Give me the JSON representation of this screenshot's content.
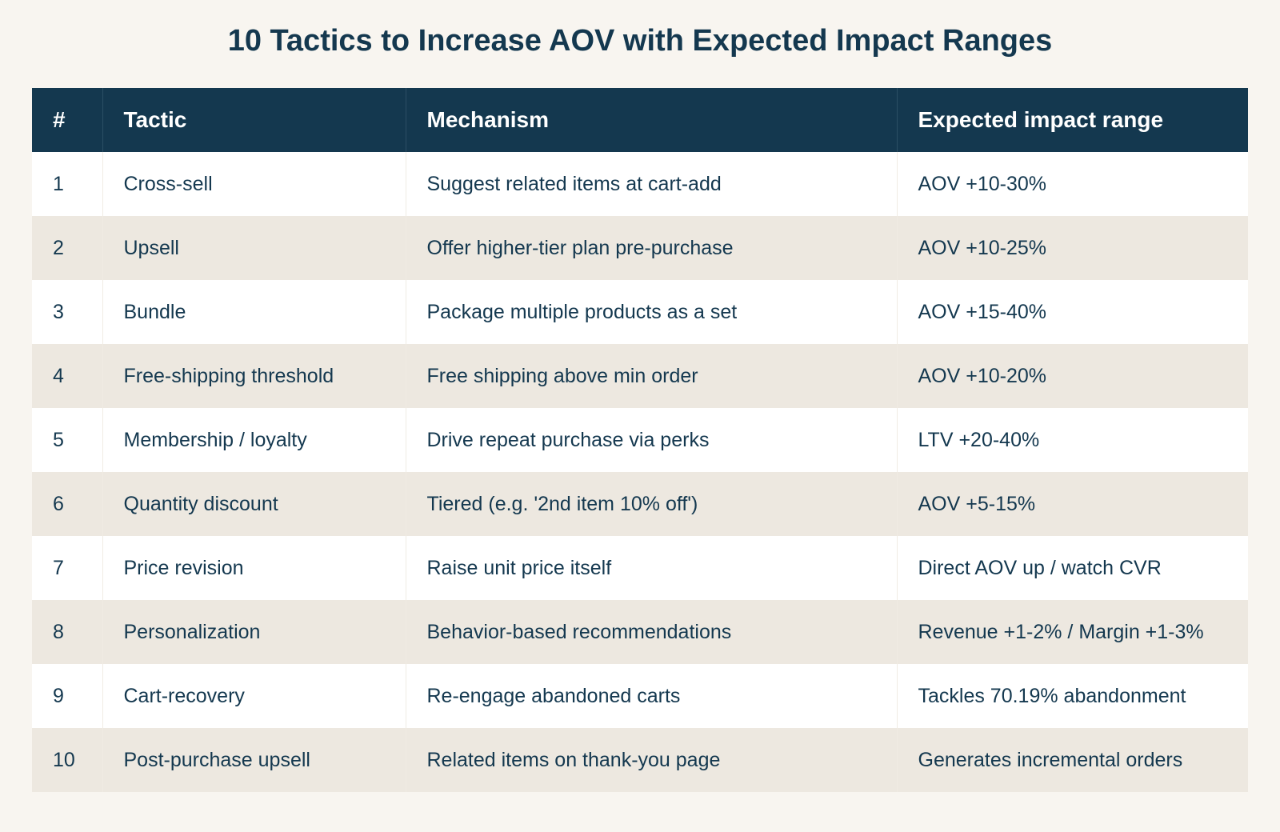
{
  "title": "10 Tactics to Increase AOV with Expected Impact Ranges",
  "table": {
    "headers": [
      "#",
      "Tactic",
      "Mechanism",
      "Expected impact range"
    ],
    "rows": [
      [
        "1",
        "Cross-sell",
        "Suggest related items at cart-add",
        "AOV +10-30%"
      ],
      [
        "2",
        "Upsell",
        "Offer higher-tier plan pre-purchase",
        "AOV +10-25%"
      ],
      [
        "3",
        "Bundle",
        "Package multiple products as a set",
        "AOV +15-40%"
      ],
      [
        "4",
        "Free-shipping threshold",
        "Free shipping above min order",
        "AOV +10-20%"
      ],
      [
        "5",
        "Membership / loyalty",
        "Drive repeat purchase via perks",
        "LTV +20-40%"
      ],
      [
        "6",
        "Quantity discount",
        "Tiered (e.g. '2nd item 10% off')",
        "AOV +5-15%"
      ],
      [
        "7",
        "Price revision",
        "Raise unit price itself",
        "Direct AOV up / watch CVR"
      ],
      [
        "8",
        "Personalization",
        "Behavior-based recommendations",
        "Revenue +1-2% / Margin +1-3%"
      ],
      [
        "9",
        "Cart-recovery",
        "Re-engage abandoned carts",
        "Tackles 70.19% abandonment"
      ],
      [
        "10",
        "Post-purchase upsell",
        "Related items on thank-you page",
        "Generates incremental orders"
      ]
    ]
  }
}
